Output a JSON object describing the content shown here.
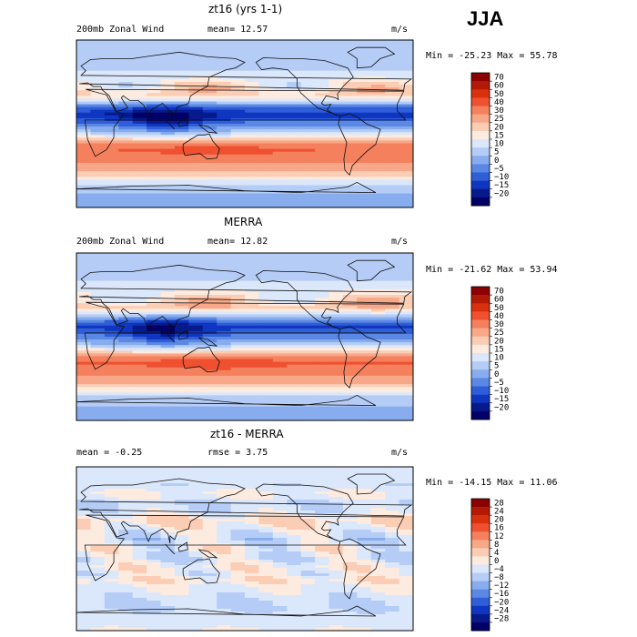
{
  "season": "JJA",
  "panels": [
    {
      "title": "zt16 (yrs 1-1)",
      "variable": "200mb Zonal Wind",
      "stat_text": "mean=  12.57",
      "units": "m/s",
      "minmax": "Min = -25.23 Max =  55.78"
    },
    {
      "title": "MERRA",
      "variable": "200mb Zonal Wind",
      "stat_text": "mean=  12.82",
      "units": "m/s",
      "minmax": "Min = -21.62 Max =  53.94"
    },
    {
      "title": "zt16 - MERRA",
      "variable": "mean =  -0.25",
      "stat_text": "rmse =   3.75",
      "units": "m/s",
      "minmax": "Min = -14.15 Max =  11.06"
    }
  ],
  "chart_data": [
    {
      "type": "heatmap",
      "title": "zt16 (yrs 1-1)",
      "subtitle": "200mb Zonal Wind",
      "units": "m/s",
      "mean": 12.57,
      "min": -25.23,
      "max": 55.78,
      "colorbar_levels": [
        70,
        60,
        50,
        40,
        30,
        25,
        20,
        15,
        10,
        5,
        0,
        -5,
        -10,
        -15,
        -20
      ],
      "colorbar_labels": [
        "70",
        "60",
        "50",
        "40",
        "30",
        "25",
        "20",
        "15",
        "10",
        "5",
        "0",
        "−5",
        "−10",
        "−15",
        "−20"
      ],
      "colors": [
        "#8b0000",
        "#b31a05",
        "#d9300e",
        "#ee5030",
        "#f4805e",
        "#f8a888",
        "#fbcdb4",
        "#fdebdf",
        "#dbe7fa",
        "#b5cdf6",
        "#88adee",
        "#5b88e4",
        "#2f5ed8",
        "#0f36c0",
        "#071a8c",
        "#000066"
      ]
    },
    {
      "type": "heatmap",
      "title": "MERRA",
      "subtitle": "200mb Zonal Wind",
      "units": "m/s",
      "mean": 12.82,
      "min": -21.62,
      "max": 53.94,
      "colorbar_levels": [
        70,
        60,
        50,
        40,
        30,
        25,
        20,
        15,
        10,
        5,
        0,
        -5,
        -10,
        -15,
        -20
      ],
      "colorbar_labels": [
        "70",
        "60",
        "50",
        "40",
        "30",
        "25",
        "20",
        "15",
        "10",
        "5",
        "0",
        "−5",
        "−10",
        "−15",
        "−20"
      ],
      "colors": [
        "#8b0000",
        "#b31a05",
        "#d9300e",
        "#ee5030",
        "#f4805e",
        "#f8a888",
        "#fbcdb4",
        "#fdebdf",
        "#dbe7fa",
        "#b5cdf6",
        "#88adee",
        "#5b88e4",
        "#2f5ed8",
        "#0f36c0",
        "#071a8c",
        "#000066"
      ]
    },
    {
      "type": "heatmap",
      "title": "zt16 - MERRA",
      "units": "m/s",
      "mean": -0.25,
      "rmse": 3.75,
      "min": -14.15,
      "max": 11.06,
      "colorbar_levels": [
        28,
        24,
        20,
        16,
        12,
        8,
        4,
        0,
        -4,
        -8,
        -12,
        -16,
        -20,
        -24,
        -28
      ],
      "colorbar_labels": [
        "28",
        "24",
        "20",
        "16",
        "12",
        "8",
        "4",
        "0",
        "−4",
        "−8",
        "−12",
        "−16",
        "−20",
        "−24",
        "−28"
      ],
      "colors": [
        "#8b0000",
        "#b31a05",
        "#d9300e",
        "#ee5030",
        "#f4805e",
        "#f8a888",
        "#fbcdb4",
        "#fdebdf",
        "#dbe7fa",
        "#b5cdf6",
        "#88adee",
        "#5b88e4",
        "#2f5ed8",
        "#0f36c0",
        "#071a8c",
        "#000066"
      ]
    }
  ]
}
